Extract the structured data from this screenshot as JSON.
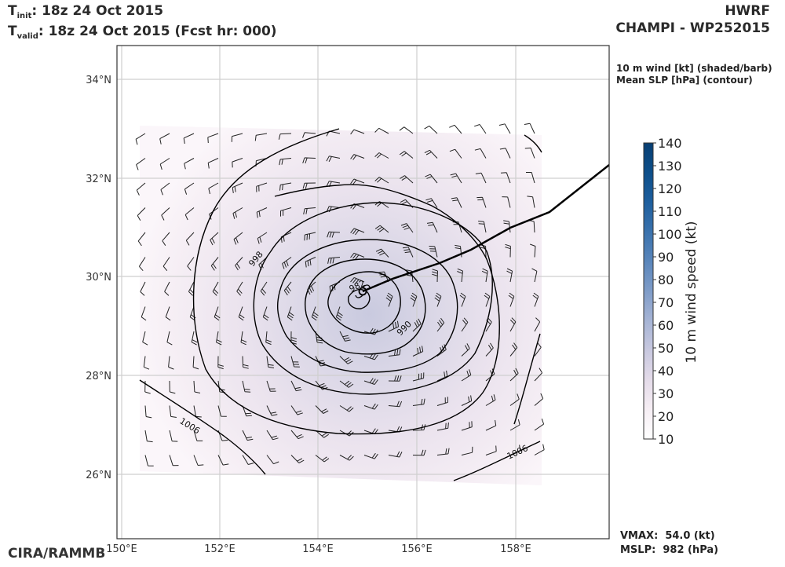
{
  "header": {
    "init_prefix": "T",
    "init_sub": "init",
    "init_value": ":  18z 24 Oct 2015",
    "valid_prefix": "T",
    "valid_sub": "valid",
    "valid_value": ": 18z 24 Oct 2015 (Fcst hr: 000)",
    "model": "HWRF",
    "storm": "CHAMPI - WP252015"
  },
  "legend": {
    "line1": "10 m wind [kt] (shaded/barb)",
    "line2": "Mean SLP [hPa] (contour)"
  },
  "stats": {
    "vmax": "VMAX:  54.0 (kt)",
    "mslp": "MSLP:  982 (hPa)"
  },
  "credit": "CIRA/RAMMB",
  "map": {
    "lon_ticks": [
      "150°E",
      "152°E",
      "154°E",
      "156°E",
      "158°E"
    ],
    "lat_ticks": [
      "34°N",
      "32°N",
      "30°N",
      "28°N",
      "26°N"
    ],
    "contour_labels": [
      "998",
      "990",
      "982",
      "1006",
      "1006"
    ]
  },
  "colorbar": {
    "label": "10 m wind speed (kt)",
    "ticks": [
      "140",
      "130",
      "120",
      "110",
      "100",
      "90",
      "80",
      "70",
      "60",
      "50",
      "40",
      "30",
      "20",
      "10"
    ],
    "colors": [
      "#ffffff",
      "#f6eef4",
      "#e3dbe8",
      "#c7c7df",
      "#a6b4d5",
      "#7f9cc8",
      "#5a86bb",
      "#3a72ad",
      "#1e5f9e",
      "#0d4f8a",
      "#083f73"
    ]
  }
}
